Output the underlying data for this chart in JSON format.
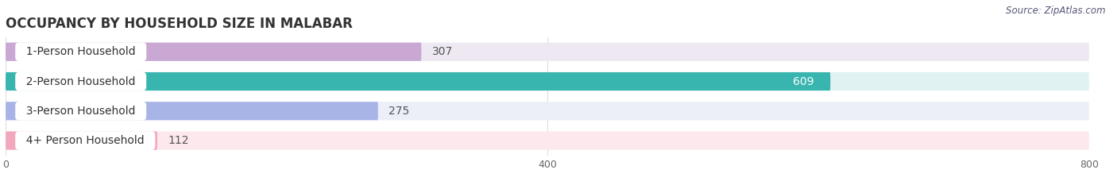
{
  "title": "OCCUPANCY BY HOUSEHOLD SIZE IN MALABAR",
  "source": "Source: ZipAtlas.com",
  "categories": [
    "1-Person Household",
    "2-Person Household",
    "3-Person Household",
    "4+ Person Household"
  ],
  "values": [
    307,
    609,
    275,
    112
  ],
  "bar_colors": [
    "#c9a8d4",
    "#39b5b0",
    "#a8b4e6",
    "#f2a8bc"
  ],
  "bar_bg_colors": [
    "#ede8f2",
    "#e0f2f1",
    "#eceef8",
    "#fde8ed"
  ],
  "label_bg_color": "#ffffff",
  "xlim": [
    0,
    800
  ],
  "xticks": [
    0,
    400,
    800
  ],
  "title_fontsize": 12,
  "label_fontsize": 10,
  "value_fontsize": 10,
  "background_color": "#ffffff",
  "grid_color": "#dddddd",
  "tick_color": "#aaaaaa",
  "text_color": "#555555",
  "value_label_2_color": "#ffffff",
  "value_label_color": "#555555"
}
